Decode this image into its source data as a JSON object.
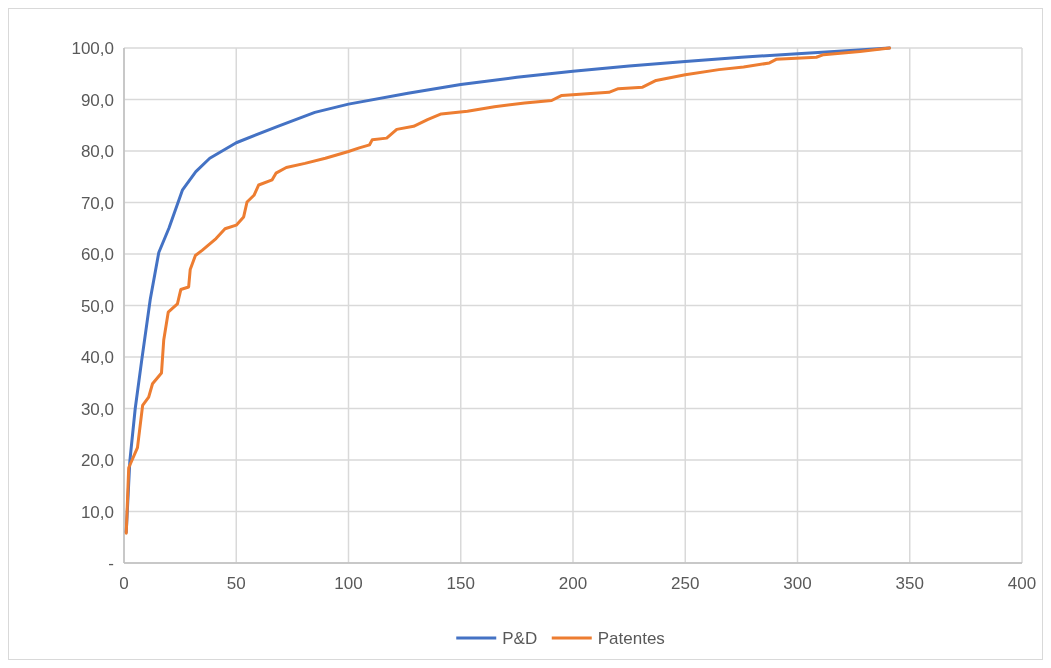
{
  "chart_data": {
    "type": "line",
    "xlim": [
      0,
      400
    ],
    "xticks": [
      0,
      50,
      100,
      150,
      200,
      250,
      300,
      350,
      400
    ],
    "ylim": [
      0,
      100
    ],
    "yticks": [
      {
        "value": 0,
        "label": "-"
      },
      {
        "value": 10,
        "label": "10,0"
      },
      {
        "value": 20,
        "label": "20,0"
      },
      {
        "value": 30,
        "label": "30,0"
      },
      {
        "value": 40,
        "label": "40,0"
      },
      {
        "value": 50,
        "label": "50,0"
      },
      {
        "value": 60,
        "label": "60,0"
      },
      {
        "value": 70,
        "label": "70,0"
      },
      {
        "value": 80,
        "label": "80,0"
      },
      {
        "value": 90,
        "label": "90,0"
      },
      {
        "value": 100,
        "label": "100,0"
      }
    ],
    "grid": true,
    "legend": "bottom",
    "marker": "none",
    "line_style": "solid",
    "series": [
      {
        "name": "P&D",
        "color": "#4472c4",
        "x": [
          1,
          2.6,
          5,
          7.9,
          11.7,
          15.5,
          20,
          26,
          32,
          38.2,
          50,
          68.5,
          85,
          100,
          126.5,
          150,
          175,
          200,
          225,
          250,
          275,
          300,
          320,
          341
        ],
        "values": [
          6,
          19.8,
          30,
          39.4,
          51.2,
          60.3,
          65,
          72.4,
          76,
          78.6,
          81.6,
          84.8,
          87.5,
          89.1,
          91.2,
          92.9,
          94.3,
          95.5,
          96.5,
          97.4,
          98.2,
          98.9,
          99.4,
          100
        ]
      },
      {
        "name": "Patentes",
        "color": "#ed7d31",
        "x": [
          1,
          2.1,
          6,
          8.3,
          11,
          12.7,
          16.7,
          17.7,
          19.7,
          23.8,
          25.3,
          28.8,
          29.5,
          31.8,
          34.8,
          41,
          45,
          50,
          53.3,
          54.8,
          57.9,
          60,
          66,
          67.7,
          72.3,
          80.6,
          89.7,
          100,
          104.8,
          109.4,
          110.6,
          117,
          121.5,
          129,
          135.2,
          141.3,
          153,
          165,
          178.5,
          190.5,
          195,
          216,
          220.2,
          231,
          237,
          250,
          265,
          276,
          287.5,
          290.5,
          308.4,
          311.6,
          327.8,
          341
        ],
        "values": [
          5.8,
          18.5,
          22.4,
          30.6,
          32.2,
          34.8,
          36.9,
          43.3,
          48.7,
          50.3,
          53.1,
          53.6,
          57,
          59.7,
          60.7,
          63,
          64.9,
          65.6,
          67.2,
          70.1,
          71.4,
          73.4,
          74.4,
          75.7,
          76.8,
          77.6,
          78.6,
          79.9,
          80.6,
          81.2,
          82.2,
          82.5,
          84.2,
          84.8,
          86.1,
          87.2,
          87.7,
          88.6,
          89.3,
          89.8,
          90.8,
          91.4,
          92.1,
          92.4,
          93.7,
          94.8,
          95.8,
          96.3,
          97.1,
          97.8,
          98.2,
          98.7,
          99.3,
          100
        ]
      }
    ]
  }
}
